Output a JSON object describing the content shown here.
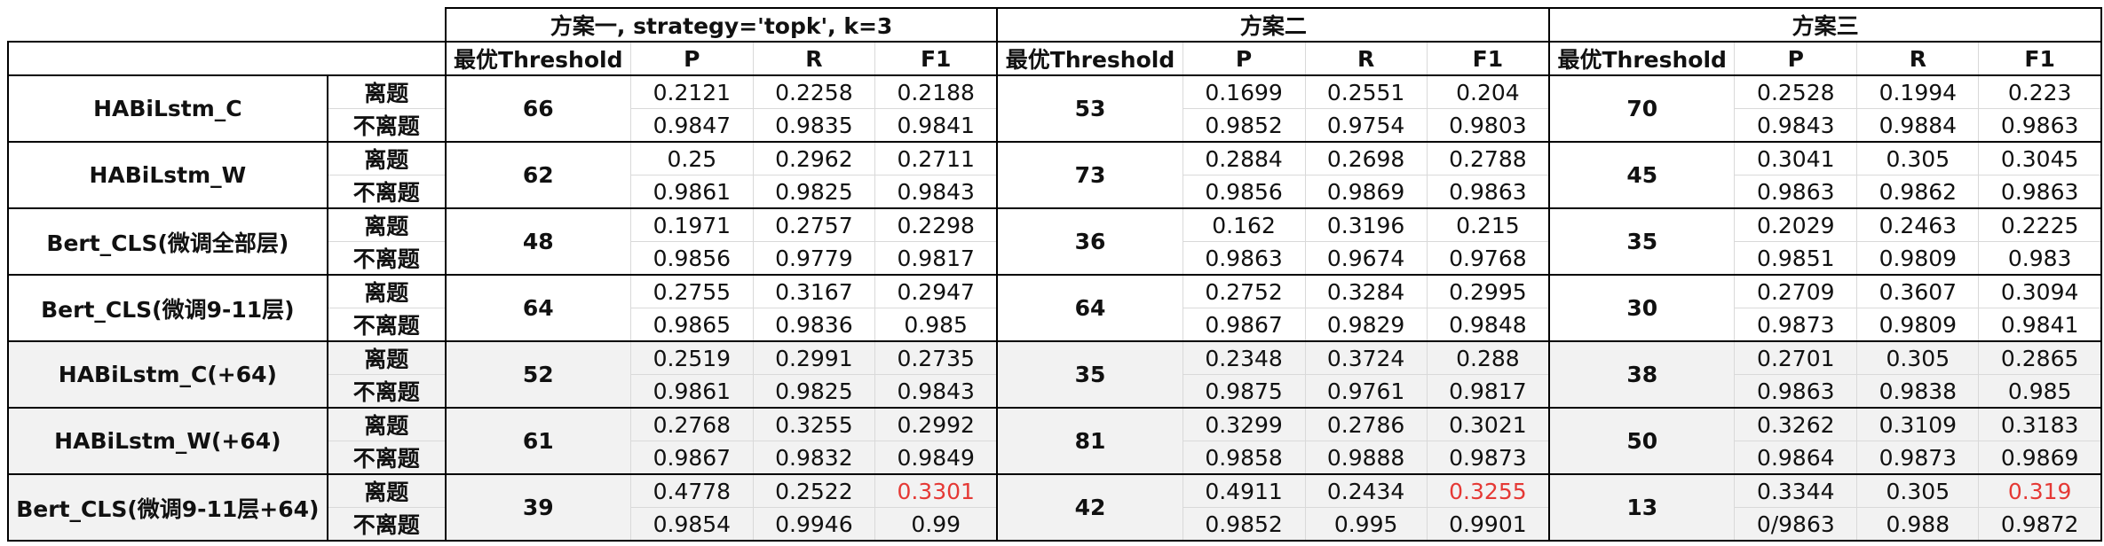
{
  "groups": [
    {
      "title": "方案一, strategy='topk', k=3"
    },
    {
      "title": "方案二"
    },
    {
      "title": "方案三"
    }
  ],
  "columns": [
    "最优Threshold",
    "P",
    "R",
    "F1"
  ],
  "labels": [
    "离题",
    "不离题"
  ],
  "highlight_color": "#e53935",
  "rows": [
    {
      "model": "HABiLstm_C",
      "schemes": [
        {
          "threshold": "66",
          "p": [
            "0.2121",
            "0.9847"
          ],
          "r": [
            "0.2258",
            "0.9835"
          ],
          "f1": [
            "0.2188",
            "0.9841"
          ]
        },
        {
          "threshold": "53",
          "p": [
            "0.1699",
            "0.9852"
          ],
          "r": [
            "0.2551",
            "0.9754"
          ],
          "f1": [
            "0.204",
            "0.9803"
          ]
        },
        {
          "threshold": "70",
          "p": [
            "0.2528",
            "0.9843"
          ],
          "r": [
            "0.1994",
            "0.9884"
          ],
          "f1": [
            "0.223",
            "0.9863"
          ]
        }
      ]
    },
    {
      "model": "HABiLstm_W",
      "schemes": [
        {
          "threshold": "62",
          "p": [
            "0.25",
            "0.9861"
          ],
          "r": [
            "0.2962",
            "0.9825"
          ],
          "f1": [
            "0.2711",
            "0.9843"
          ]
        },
        {
          "threshold": "73",
          "p": [
            "0.2884",
            "0.9856"
          ],
          "r": [
            "0.2698",
            "0.9869"
          ],
          "f1": [
            "0.2788",
            "0.9863"
          ]
        },
        {
          "threshold": "45",
          "p": [
            "0.3041",
            "0.9863"
          ],
          "r": [
            "0.305",
            "0.9862"
          ],
          "f1": [
            "0.3045",
            "0.9863"
          ]
        }
      ]
    },
    {
      "model": "Bert_CLS(微调全部层)",
      "schemes": [
        {
          "threshold": "48",
          "p": [
            "0.1971",
            "0.9856"
          ],
          "r": [
            "0.2757",
            "0.9779"
          ],
          "f1": [
            "0.2298",
            "0.9817"
          ]
        },
        {
          "threshold": "36",
          "p": [
            "0.162",
            "0.9863"
          ],
          "r": [
            "0.3196",
            "0.9674"
          ],
          "f1": [
            "0.215",
            "0.9768"
          ]
        },
        {
          "threshold": "35",
          "p": [
            "0.2029",
            "0.9851"
          ],
          "r": [
            "0.2463",
            "0.9809"
          ],
          "f1": [
            "0.2225",
            "0.983"
          ]
        }
      ]
    },
    {
      "model": "Bert_CLS(微调9-11层)",
      "schemes": [
        {
          "threshold": "64",
          "p": [
            "0.2755",
            "0.9865"
          ],
          "r": [
            "0.3167",
            "0.9836"
          ],
          "f1": [
            "0.2947",
            "0.985"
          ]
        },
        {
          "threshold": "64",
          "p": [
            "0.2752",
            "0.9867"
          ],
          "r": [
            "0.3284",
            "0.9829"
          ],
          "f1": [
            "0.2995",
            "0.9848"
          ]
        },
        {
          "threshold": "30",
          "p": [
            "0.2709",
            "0.9873"
          ],
          "r": [
            "0.3607",
            "0.9809"
          ],
          "f1": [
            "0.3094",
            "0.9841"
          ]
        }
      ]
    },
    {
      "model": "HABiLstm_C(+64)",
      "schemes": [
        {
          "threshold": "52",
          "p": [
            "0.2519",
            "0.9861"
          ],
          "r": [
            "0.2991",
            "0.9825"
          ],
          "f1": [
            "0.2735",
            "0.9843"
          ]
        },
        {
          "threshold": "35",
          "p": [
            "0.2348",
            "0.9875"
          ],
          "r": [
            "0.3724",
            "0.9761"
          ],
          "f1": [
            "0.288",
            "0.9817"
          ]
        },
        {
          "threshold": "38",
          "p": [
            "0.2701",
            "0.9863"
          ],
          "r": [
            "0.305",
            "0.9838"
          ],
          "f1": [
            "0.2865",
            "0.985"
          ]
        }
      ]
    },
    {
      "model": "HABiLstm_W(+64)",
      "schemes": [
        {
          "threshold": "61",
          "p": [
            "0.2768",
            "0.9867"
          ],
          "r": [
            "0.3255",
            "0.9832"
          ],
          "f1": [
            "0.2992",
            "0.9849"
          ]
        },
        {
          "threshold": "81",
          "p": [
            "0.3299",
            "0.9858"
          ],
          "r": [
            "0.2786",
            "0.9888"
          ],
          "f1": [
            "0.3021",
            "0.9873"
          ]
        },
        {
          "threshold": "50",
          "p": [
            "0.3262",
            "0.9864"
          ],
          "r": [
            "0.3109",
            "0.9873"
          ],
          "f1": [
            "0.3183",
            "0.9869"
          ]
        }
      ]
    },
    {
      "model": "Bert_CLS(微调9-11层+64)",
      "schemes": [
        {
          "threshold": "39",
          "p": [
            "0.4778",
            "0.9854"
          ],
          "r": [
            "0.2522",
            "0.9946"
          ],
          "f1": [
            "0.3301",
            "0.99"
          ]
        },
        {
          "threshold": "42",
          "p": [
            "0.4911",
            "0.9852"
          ],
          "r": [
            "0.2434",
            "0.995"
          ],
          "f1": [
            "0.3255",
            "0.9901"
          ]
        },
        {
          "threshold": "13",
          "p": [
            "0.3344",
            "0/9863"
          ],
          "r": [
            "0.305",
            "0.988"
          ],
          "f1": [
            "0.319",
            "0.9872"
          ]
        }
      ]
    }
  ]
}
